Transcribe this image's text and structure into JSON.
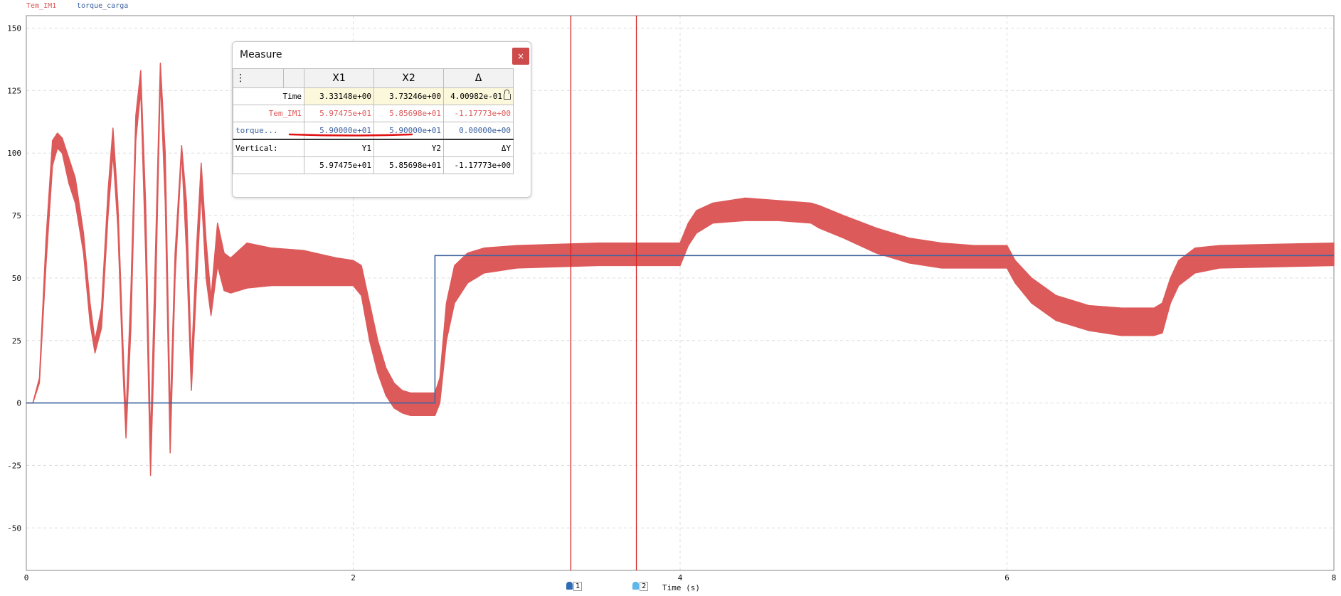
{
  "chart_data": {
    "type": "line",
    "xlabel": "Time (s)",
    "ylabel": "",
    "xlim": [
      0,
      8
    ],
    "ylim": [
      -67,
      155
    ],
    "x_ticks": [
      0,
      2,
      4,
      6,
      8
    ],
    "y_ticks": [
      150,
      125,
      100,
      75,
      50,
      25,
      0,
      -25,
      -50
    ],
    "grid": true,
    "legend_position": "top-left",
    "series": [
      {
        "name": "Tem_IM1",
        "color": "#dd5a5a",
        "envelope_points": [
          [
            0.0,
            0,
            0
          ],
          [
            0.04,
            0,
            0
          ],
          [
            0.08,
            8,
            10
          ],
          [
            0.12,
            55,
            65
          ],
          [
            0.16,
            95,
            105
          ],
          [
            0.19,
            102,
            108
          ],
          [
            0.22,
            100,
            106
          ],
          [
            0.26,
            88,
            98
          ],
          [
            0.3,
            80,
            90
          ],
          [
            0.35,
            60,
            68
          ],
          [
            0.39,
            32,
            40
          ],
          [
            0.42,
            20,
            25
          ],
          [
            0.46,
            30,
            38
          ],
          [
            0.5,
            75,
            85
          ],
          [
            0.53,
            100,
            110
          ],
          [
            0.56,
            70,
            80
          ],
          [
            0.59,
            15,
            25
          ],
          [
            0.61,
            -14,
            -5
          ],
          [
            0.64,
            30,
            45
          ],
          [
            0.67,
            105,
            115
          ],
          [
            0.7,
            125,
            133
          ],
          [
            0.73,
            60,
            80
          ],
          [
            0.76,
            -29,
            -15
          ],
          [
            0.79,
            40,
            60
          ],
          [
            0.82,
            130,
            136
          ],
          [
            0.85,
            80,
            100
          ],
          [
            0.88,
            -20,
            -5
          ],
          [
            0.91,
            50,
            60
          ],
          [
            0.95,
            100,
            103
          ],
          [
            0.98,
            60,
            80
          ],
          [
            1.01,
            5,
            15
          ],
          [
            1.04,
            45,
            60
          ],
          [
            1.07,
            85,
            96
          ],
          [
            1.1,
            50,
            65
          ],
          [
            1.13,
            35,
            42
          ],
          [
            1.17,
            55,
            72
          ],
          [
            1.21,
            45,
            60
          ],
          [
            1.25,
            44,
            58
          ],
          [
            1.35,
            46,
            64
          ],
          [
            1.5,
            47,
            62
          ],
          [
            1.7,
            47,
            61
          ],
          [
            1.9,
            47,
            58
          ],
          [
            2.0,
            47,
            57
          ],
          [
            2.05,
            43,
            55
          ],
          [
            2.1,
            25,
            40
          ],
          [
            2.15,
            12,
            25
          ],
          [
            2.2,
            3,
            14
          ],
          [
            2.25,
            -2,
            8
          ],
          [
            2.3,
            -4,
            5
          ],
          [
            2.35,
            -5,
            4
          ],
          [
            2.45,
            -5,
            4
          ],
          [
            2.5,
            -5,
            4
          ],
          [
            2.53,
            0,
            10
          ],
          [
            2.57,
            25,
            40
          ],
          [
            2.62,
            40,
            55
          ],
          [
            2.7,
            48,
            60
          ],
          [
            2.8,
            52,
            62
          ],
          [
            3.0,
            54,
            63
          ],
          [
            3.5,
            55,
            64
          ],
          [
            3.95,
            55,
            64
          ],
          [
            4.0,
            55,
            64
          ],
          [
            4.05,
            63,
            72
          ],
          [
            4.1,
            68,
            77
          ],
          [
            4.2,
            72,
            80
          ],
          [
            4.4,
            73,
            82
          ],
          [
            4.6,
            73,
            81
          ],
          [
            4.8,
            72,
            80
          ],
          [
            4.85,
            70,
            79
          ],
          [
            5.0,
            66,
            75
          ],
          [
            5.2,
            60,
            70
          ],
          [
            5.4,
            56,
            66
          ],
          [
            5.6,
            54,
            64
          ],
          [
            5.8,
            54,
            63
          ],
          [
            6.0,
            54,
            63
          ],
          [
            6.05,
            48,
            57
          ],
          [
            6.15,
            40,
            50
          ],
          [
            6.3,
            33,
            43
          ],
          [
            6.5,
            29,
            39
          ],
          [
            6.7,
            27,
            38
          ],
          [
            6.9,
            27,
            38
          ],
          [
            6.95,
            28,
            40
          ],
          [
            7.0,
            40,
            50
          ],
          [
            7.05,
            47,
            57
          ],
          [
            7.15,
            52,
            62
          ],
          [
            7.3,
            54,
            63
          ],
          [
            8.0,
            55,
            64
          ]
        ]
      },
      {
        "name": "torque_carga",
        "color": "#3f64a0",
        "points": [
          [
            0,
            0
          ],
          [
            2.5,
            0
          ],
          [
            2.5,
            59
          ],
          [
            8,
            59
          ]
        ]
      }
    ],
    "cursors": [
      {
        "label": "1",
        "x": 3.33148,
        "color": "#2e6db4"
      },
      {
        "label": "2",
        "x": 3.73246,
        "color": "#5fb6e8"
      }
    ]
  },
  "measure": {
    "title": "Measure",
    "close_glyph": "×",
    "menu_glyph": "⋮",
    "headers": [
      "X1",
      "X2",
      "Δ"
    ],
    "rows": [
      {
        "label": "Time",
        "x1": "3.33148e+00",
        "x2": "3.73246e+00",
        "delta": "4.00982e-01"
      },
      {
        "label": "Tem_IM1",
        "x1": "5.97475e+01",
        "x2": "5.85698e+01",
        "delta": "-1.17773e+00"
      },
      {
        "label": "torque...",
        "x1": "5.90000e+01",
        "x2": "5.90000e+01",
        "delta": "0.00000e+00"
      }
    ],
    "vertical": {
      "label": "Vertical:",
      "h1": "Y1",
      "h2": "Y2",
      "h3": "ΔY",
      "y1": "5.97475e+01",
      "y2": "5.85698e+01",
      "dy": "-1.17773e+00"
    }
  }
}
